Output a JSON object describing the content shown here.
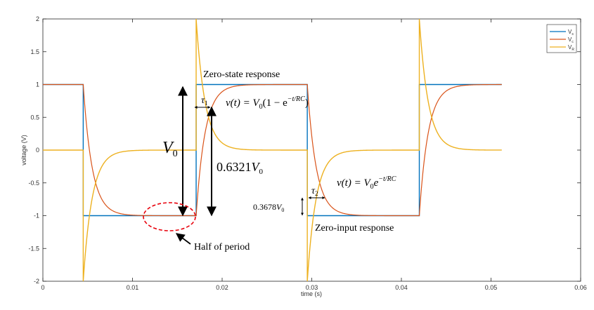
{
  "chart_data": {
    "type": "line",
    "title": "",
    "xlabel": "time (s)",
    "ylabel": "voltage (V)",
    "xlim": [
      0,
      0.06
    ],
    "ylim": [
      -2,
      2
    ],
    "x_ticks": [
      0,
      0.01,
      0.02,
      0.03,
      0.04,
      0.05,
      0.06
    ],
    "x_tick_labels": [
      "0",
      "0.01",
      "0.02",
      "0.03",
      "0.04",
      "0.05",
      "0.06"
    ],
    "y_ticks": [
      -2,
      -1.5,
      -1,
      -0.5,
      0,
      0.5,
      1,
      1.5,
      2
    ],
    "y_tick_labels": [
      "-2",
      "-1.5",
      "-1",
      "-0.5",
      "0",
      "0.5",
      "1",
      "1.5",
      "2"
    ],
    "grid": false,
    "legend_position": "top-right",
    "time_constant": 0.001,
    "t_end": 0.0512,
    "switch_times": [
      0.0045,
      0.0171,
      0.0295,
      0.042
    ],
    "series": [
      {
        "name": "V_s",
        "color": "#0072BD",
        "initial": 1,
        "levels": [
          -1,
          1,
          -1,
          1
        ]
      },
      {
        "name": "V_c",
        "color": "#D95319"
      },
      {
        "name": "V_R",
        "color": "#EDB120"
      }
    ],
    "annotations": {
      "zero_state": "Zero-state response",
      "zero_input": "Zero-input response",
      "half_period": "Half of period",
      "v0": "V",
      "v0_sub": "0",
      "v0632_coef": "0.6321",
      "v0632_var": "V",
      "v0632_sub": "0",
      "v0368_coef": "0.3678",
      "v0368_var": "V",
      "v0368_sub": "0",
      "tau": "τ",
      "tau1_sub": "1",
      "tau2_sub": "2",
      "eq1_lhs": "v(t) = V",
      "eq1_sub": "0",
      "eq1_mid": "(1 − e",
      "eq1_exp": "−t/RC",
      "eq1_end": ")",
      "eq2_lhs": "v(t) = V",
      "eq2_sub": "0",
      "eq2_mid": "e",
      "eq2_exp": "−t/RC"
    },
    "legend_labels": [
      {
        "base": "V",
        "sub": "s"
      },
      {
        "base": "V",
        "sub": "c"
      },
      {
        "base": "V",
        "sub": "R"
      }
    ]
  }
}
